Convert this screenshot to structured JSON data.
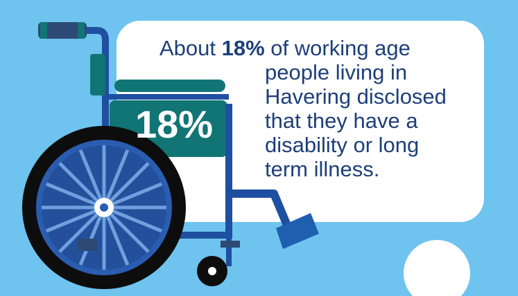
{
  "infographic": {
    "statement_prefix": "About ",
    "statement_highlight": "18%",
    "statement_line1_suffix": " of working age",
    "statement_rest": "people living in Havering disclosed that they have a disability or long term illness.",
    "big_percentage": "18%"
  },
  "colors": {
    "background": "#6fc3ef",
    "card": "#ffffff",
    "text": "#1d3f7a",
    "frame": "#1f4fa0",
    "seat": "#127575",
    "wheel_rim": "#0d0d0d",
    "wheel_inner": "#2a5db0",
    "handle": "#2c4a75",
    "footrest": "#1f5fb0"
  },
  "icons": [
    "wheelchair-icon",
    "circle-decoration-icon"
  ]
}
